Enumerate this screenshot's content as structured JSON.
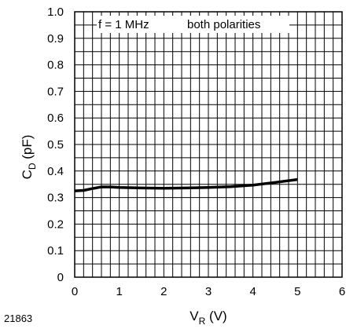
{
  "chart_data": {
    "type": "line",
    "xlabel": "V",
    "xlabel_sub": "R",
    "xlabel_unit": " (V)",
    "ylabel": "C",
    "ylabel_sub": "D",
    "ylabel_unit": " (pF)",
    "xlim": [
      0,
      6
    ],
    "ylim": [
      0,
      1.0
    ],
    "x_ticks": [
      "0",
      "1",
      "2",
      "3",
      "4",
      "5",
      "6"
    ],
    "y_ticks": [
      "0",
      "0.1",
      "0.2",
      "0.3",
      "0.4",
      "0.5",
      "0.6",
      "0.7",
      "0.8",
      "0.9",
      "1.0"
    ],
    "grid": true,
    "annotations": [
      "f = 1 MHz",
      "both polarities"
    ],
    "figure_id": "21863",
    "series": [
      {
        "x": [
          0,
          0.2,
          0.4,
          0.6,
          0.8,
          1.0,
          1.5,
          2.0,
          2.5,
          3.0,
          3.5,
          4.0,
          4.5,
          5.0
        ],
        "y": [
          0.325,
          0.327,
          0.334,
          0.34,
          0.34,
          0.338,
          0.336,
          0.335,
          0.336,
          0.338,
          0.341,
          0.347,
          0.357,
          0.368
        ]
      }
    ]
  }
}
